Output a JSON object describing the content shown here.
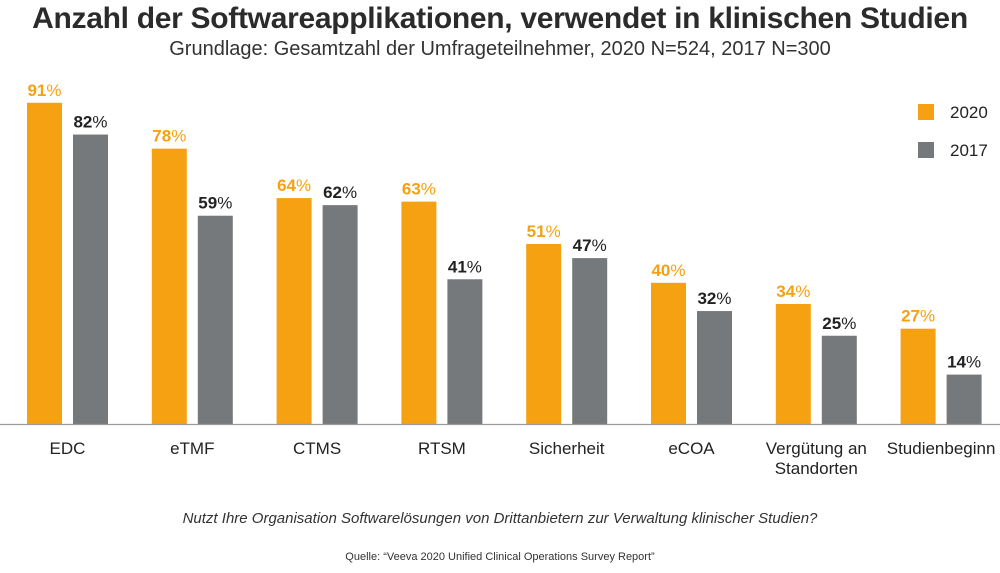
{
  "chart_data": {
    "type": "bar",
    "title": "Anzahl der Softwareapplikationen, verwendet in klinischen Studien",
    "subtitle": "Grundlage: Gesamtzahl der Umfrageteilnehmer, 2020 N=524, 2017 N=300",
    "categories": [
      [
        "EDC"
      ],
      [
        "eTMF"
      ],
      [
        "CTMS"
      ],
      [
        "RTSM"
      ],
      [
        "Sicherheit"
      ],
      [
        "eCOA"
      ],
      [
        "Vergütung an",
        "Standorten"
      ],
      [
        "Studienbeginn"
      ]
    ],
    "series": [
      {
        "name": "2020",
        "color": "#F6A112",
        "label_color": "#F6A112",
        "values": [
          91,
          78,
          64,
          63,
          51,
          40,
          34,
          27
        ]
      },
      {
        "name": "2017",
        "color": "#75797C",
        "label_color": "#222222",
        "values": [
          82,
          59,
          62,
          41,
          47,
          32,
          25,
          14
        ]
      }
    ],
    "value_suffix": "%",
    "ylim": [
      0,
      100
    ],
    "legend": "top-right",
    "grid": false
  },
  "footer": {
    "question": "Nutzt Ihre Organisation Softwarelösungen von Drittanbietern zur Verwaltung klinischer Studien?",
    "source": "Quelle: “Veeva 2020 Unified Clinical Operations Survey Report”"
  }
}
